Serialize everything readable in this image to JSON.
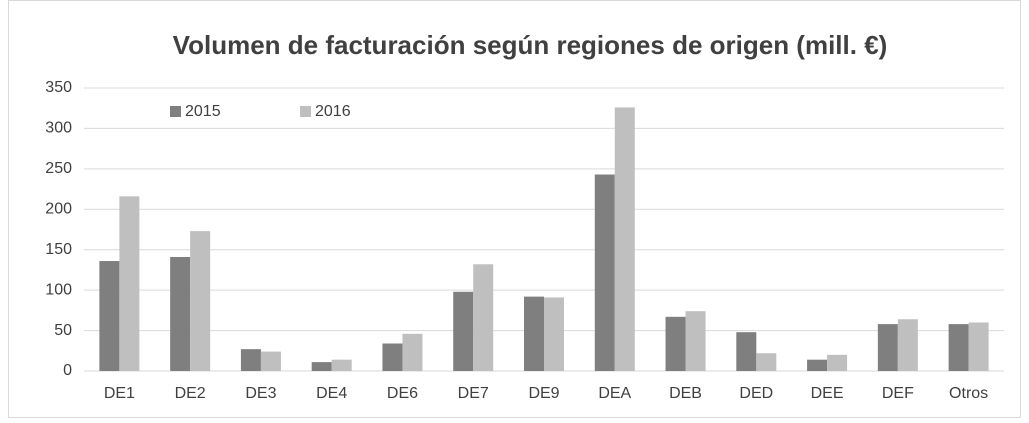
{
  "chart_data": {
    "type": "bar",
    "title": "Volumen de facturación según regiones de origen (mill. €)",
    "categories": [
      "DE1",
      "DE2",
      "DE3",
      "DE4",
      "DE6",
      "DE7",
      "DE9",
      "DEA",
      "DEB",
      "DED",
      "DEE",
      "DEF",
      "Otros"
    ],
    "series": [
      {
        "name": "2015",
        "color": "#7f7f7f",
        "values": [
          136,
          141,
          27,
          11,
          34,
          98,
          92,
          243,
          67,
          48,
          14,
          58,
          58
        ]
      },
      {
        "name": "2016",
        "color": "#bfbfbf",
        "values": [
          216,
          173,
          24,
          14,
          46,
          132,
          91,
          326,
          74,
          22,
          20,
          64,
          60
        ]
      }
    ],
    "ylim": [
      0,
      350
    ],
    "yticks": [
      0,
      50,
      100,
      150,
      200,
      250,
      300,
      350
    ],
    "grid": true,
    "legend": "top-left"
  }
}
